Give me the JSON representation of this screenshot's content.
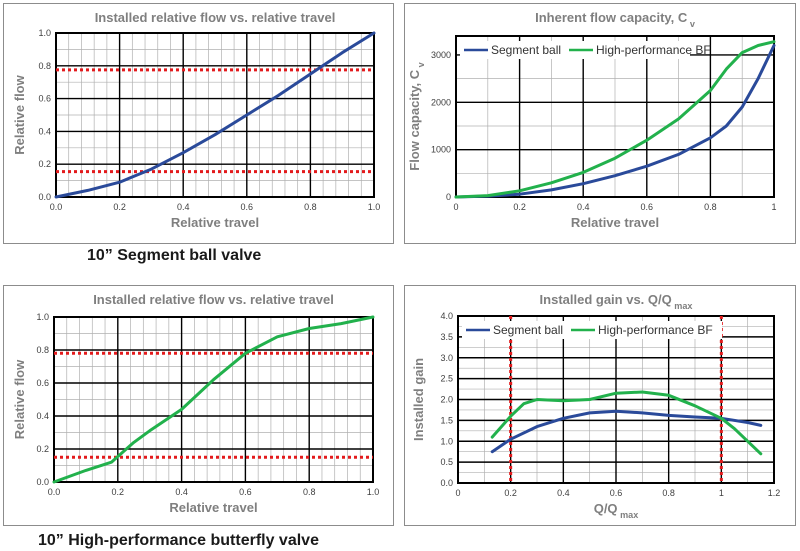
{
  "captions": {
    "segment": "10” Segment ball valve",
    "butterfly": "10” High-performance butterfly valve"
  },
  "colors": {
    "segment": "#2a4a9a",
    "butterfly": "#22b14c",
    "limit": "#e31a1c",
    "grid": "#000000"
  },
  "chart_data": [
    {
      "type": "line",
      "title": "Installed relative flow vs. relative travel",
      "xlabel": "Relative travel",
      "ylabel": "Relative flow",
      "xlim": [
        0,
        1
      ],
      "ylim": [
        0,
        1
      ],
      "xticks": [
        "0.0",
        "0.2",
        "0.4",
        "0.6",
        "0.8",
        "1.0"
      ],
      "yticks": [
        "0.0",
        "0.2",
        "0.4",
        "0.6",
        "0.8",
        "1.0"
      ],
      "grid": true,
      "series": [
        {
          "color": "#2a4a9a",
          "x": [
            0,
            0.1,
            0.2,
            0.3,
            0.4,
            0.5,
            0.6,
            0.7,
            0.8,
            0.9,
            1.0
          ],
          "y": [
            0,
            0.04,
            0.09,
            0.17,
            0.27,
            0.38,
            0.5,
            0.62,
            0.75,
            0.88,
            1.0
          ]
        }
      ],
      "hlines": [
        0.155,
        0.775
      ]
    },
    {
      "type": "line",
      "title": "Inherent flow capacity, C",
      "title_sub": "v",
      "xlabel": "Relative travel",
      "ylabel": "Flow capacity, C",
      "ylabel_sub": "v",
      "xlim": [
        0,
        1
      ],
      "ylim": [
        0,
        3400
      ],
      "xticks": [
        "0",
        "0.2",
        "0.4",
        "0.6",
        "0.8",
        "1"
      ],
      "yticks_values": [
        0,
        1000,
        2000,
        3000
      ],
      "yticks": [
        "0",
        "1000",
        "2000",
        "3000"
      ],
      "grid": true,
      "legend": "top-left",
      "series": [
        {
          "name": "Segment ball",
          "color": "#2a4a9a",
          "x": [
            0,
            0.1,
            0.2,
            0.3,
            0.4,
            0.5,
            0.6,
            0.7,
            0.8,
            0.85,
            0.9,
            0.95,
            1.0
          ],
          "y": [
            0,
            20,
            60,
            150,
            280,
            450,
            650,
            900,
            1250,
            1500,
            1900,
            2500,
            3200
          ]
        },
        {
          "name": "High-performance BF",
          "color": "#22b14c",
          "x": [
            0,
            0.1,
            0.2,
            0.3,
            0.4,
            0.5,
            0.6,
            0.7,
            0.8,
            0.85,
            0.9,
            0.95,
            1.0
          ],
          "y": [
            0,
            30,
            130,
            300,
            520,
            820,
            1200,
            1650,
            2250,
            2700,
            3050,
            3200,
            3280
          ]
        }
      ]
    },
    {
      "type": "line",
      "title": "Installed relative flow vs. relative travel",
      "xlabel": "Relative travel",
      "ylabel": "Relative flow",
      "xlim": [
        0,
        1
      ],
      "ylim": [
        0,
        1
      ],
      "xticks": [
        "0.0",
        "0.2",
        "0.4",
        "0.6",
        "0.8",
        "1.0"
      ],
      "yticks": [
        "0.0",
        "0.2",
        "0.4",
        "0.6",
        "0.8",
        "1.0"
      ],
      "grid": true,
      "series": [
        {
          "color": "#22b14c",
          "x": [
            0,
            0.1,
            0.18,
            0.25,
            0.3,
            0.4,
            0.5,
            0.6,
            0.7,
            0.8,
            0.9,
            1.0
          ],
          "y": [
            0,
            0.07,
            0.12,
            0.24,
            0.31,
            0.44,
            0.62,
            0.78,
            0.88,
            0.93,
            0.96,
            1.0
          ]
        }
      ],
      "hlines": [
        0.15,
        0.78
      ]
    },
    {
      "type": "line",
      "title": "Installed gain vs. Q/Q",
      "title_sub": "max",
      "xlabel": "Q/Q",
      "xlabel_sub": "max",
      "ylabel": "Installed gain",
      "xlim": [
        0,
        1.2
      ],
      "ylim": [
        0,
        4
      ],
      "xticks_values": [
        0,
        0.2,
        0.4,
        0.6,
        0.8,
        1,
        1.2
      ],
      "xticks": [
        "0",
        "0.2",
        "0.4",
        "0.6",
        "0.8",
        "1",
        "1.2"
      ],
      "yticks_values": [
        0,
        0.5,
        1,
        1.5,
        2,
        2.5,
        3,
        3.5,
        4
      ],
      "yticks": [
        "0.0",
        "0.5",
        "1.0",
        "1.5",
        "2.0",
        "2.5",
        "3.0",
        "3.5",
        "4.0"
      ],
      "grid": true,
      "legend": "top-left",
      "series": [
        {
          "name": "Segment ball",
          "color": "#2a4a9a",
          "x": [
            0.13,
            0.2,
            0.3,
            0.4,
            0.5,
            0.6,
            0.7,
            0.8,
            0.9,
            1.0,
            1.1,
            1.15
          ],
          "y": [
            0.75,
            1.05,
            1.35,
            1.55,
            1.68,
            1.72,
            1.68,
            1.62,
            1.58,
            1.55,
            1.45,
            1.38
          ]
        },
        {
          "name": "High-performance BF",
          "color": "#22b14c",
          "x": [
            0.13,
            0.2,
            0.25,
            0.3,
            0.4,
            0.5,
            0.6,
            0.7,
            0.8,
            0.9,
            1.0,
            1.05,
            1.1,
            1.15
          ],
          "y": [
            1.1,
            1.6,
            1.9,
            2.0,
            1.97,
            2.0,
            2.15,
            2.18,
            2.1,
            1.85,
            1.55,
            1.3,
            1.0,
            0.7
          ]
        }
      ],
      "vlines": [
        0.2,
        1.0
      ]
    }
  ]
}
